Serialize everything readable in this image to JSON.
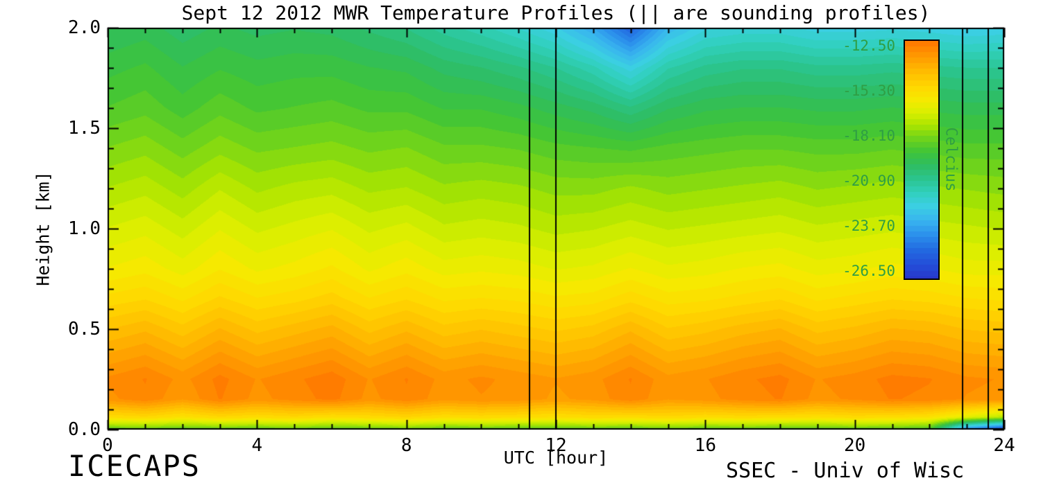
{
  "page": {
    "footer_left": "ICECAPS",
    "footer_right": "SSEC - Univ of Wisc"
  },
  "chart_data": {
    "type": "heatmap",
    "title": "Sept 12 2012 MWR Temperature Profiles (|| are sounding profiles)",
    "xlabel": "UTC [hour]",
    "ylabel": "Height [km]",
    "xlim": [
      0,
      24
    ],
    "ylim": [
      0,
      2.0
    ],
    "xticks": [
      0,
      4,
      8,
      12,
      16,
      20,
      24
    ],
    "xtick_labels": [
      "0",
      "4",
      "8",
      "12",
      "16",
      "20",
      "24"
    ],
    "x_minor_step": 1,
    "yticks": [
      0.0,
      0.5,
      1.0,
      1.5,
      2.0
    ],
    "ytick_labels": [
      "0.0",
      "0.5",
      "1.0",
      "1.5",
      "2.0"
    ],
    "y_minor_step": 0.1,
    "grid": false,
    "sounding_lines_utc": [
      11.3,
      12.0,
      22.9,
      23.6
    ],
    "colorbar": {
      "label": "Celcius",
      "tick_values": [
        -12.5,
        -15.3,
        -18.1,
        -20.9,
        -23.7,
        -26.5
      ],
      "tick_labels": [
        "-12.50",
        "-15.30",
        "-18.10",
        "-20.90",
        "-23.70",
        "-26.50"
      ],
      "top_value": -12.1,
      "bottom_value": -26.9
    },
    "band_step": 0.35,
    "colormap_stops": [
      [
        -27.2,
        "#2a2fc4"
      ],
      [
        -26.3,
        "#2447d6"
      ],
      [
        -25.2,
        "#2268e0"
      ],
      [
        -24.2,
        "#2b90ec"
      ],
      [
        -23.3,
        "#38b4ef"
      ],
      [
        -22.4,
        "#3bcfe2"
      ],
      [
        -21.6,
        "#31d0bd"
      ],
      [
        -20.7,
        "#2bc48e"
      ],
      [
        -19.8,
        "#2fbd5f"
      ],
      [
        -19.0,
        "#3fc437"
      ],
      [
        -18.2,
        "#6ed31c"
      ],
      [
        -17.4,
        "#a8e400"
      ],
      [
        -16.6,
        "#d8ef00"
      ],
      [
        -15.8,
        "#f5ea00"
      ],
      [
        -15.0,
        "#ffd900"
      ],
      [
        -14.0,
        "#ffbb00"
      ],
      [
        -13.0,
        "#ff9800"
      ],
      [
        -12.0,
        "#ff7300"
      ]
    ],
    "x": [
      0,
      1,
      2,
      3,
      4,
      5,
      6,
      7,
      8,
      9,
      10,
      11,
      12,
      13,
      14,
      15,
      16,
      17,
      18,
      19,
      20,
      21,
      22,
      23,
      24
    ],
    "heights": [
      0.0,
      0.06,
      0.15,
      0.25,
      0.35,
      0.5,
      0.65,
      0.8,
      1.0,
      1.2,
      1.4,
      1.6,
      1.8,
      2.0
    ],
    "values": [
      [
        -18.5,
        -18.3,
        -18.6,
        -18.4,
        -18.5,
        -18.3,
        -18.6,
        -18.4,
        -18.2,
        -18.5,
        -18.4,
        -18.5,
        -18.6,
        -18.4,
        -18.5,
        -18.3,
        -18.5,
        -18.4,
        -18.5,
        -18.6,
        -18.4,
        -18.5,
        -18.8,
        -24.5,
        -26.5
      ],
      [
        -15.2,
        -15.0,
        -15.4,
        -15.0,
        -15.2,
        -15.0,
        -15.3,
        -15.1,
        -14.9,
        -15.2,
        -15.1,
        -15.2,
        -15.3,
        -15.1,
        -15.2,
        -15.0,
        -15.2,
        -15.1,
        -15.2,
        -15.3,
        -15.1,
        -15.2,
        -15.4,
        -16.3,
        -17.2
      ],
      [
        -12.9,
        -12.5,
        -13.1,
        -12.4,
        -12.9,
        -12.6,
        -12.3,
        -12.9,
        -12.5,
        -13.0,
        -12.8,
        -12.9,
        -13.2,
        -13.0,
        -12.5,
        -13.1,
        -12.9,
        -12.6,
        -12.4,
        -12.9,
        -12.7,
        -12.4,
        -12.5,
        -12.8,
        -12.9
      ],
      [
        -12.7,
        -12.4,
        -12.9,
        -12.3,
        -12.8,
        -12.5,
        -12.2,
        -12.8,
        -12.4,
        -12.9,
        -12.7,
        -12.9,
        -13.1,
        -12.9,
        -12.4,
        -13.0,
        -12.8,
        -12.5,
        -12.3,
        -12.8,
        -12.6,
        -12.3,
        -12.4,
        -12.7,
        -12.8
      ],
      [
        -13.3,
        -13.0,
        -13.5,
        -12.9,
        -13.4,
        -13.1,
        -12.8,
        -13.4,
        -13.0,
        -13.5,
        -13.3,
        -13.5,
        -13.7,
        -13.5,
        -13.0,
        -13.6,
        -13.4,
        -13.1,
        -12.9,
        -13.4,
        -13.2,
        -12.9,
        -13.0,
        -13.3,
        -13.4
      ],
      [
        -14.2,
        -13.9,
        -14.4,
        -13.8,
        -14.3,
        -14.0,
        -13.7,
        -14.3,
        -13.9,
        -14.4,
        -14.2,
        -14.4,
        -14.6,
        -14.4,
        -13.9,
        -14.5,
        -14.3,
        -14.0,
        -13.8,
        -14.3,
        -14.1,
        -13.8,
        -13.9,
        -14.2,
        -14.3
      ],
      [
        -15.1,
        -14.9,
        -15.3,
        -14.8,
        -15.2,
        -15.0,
        -14.7,
        -15.2,
        -14.9,
        -15.3,
        -15.2,
        -15.3,
        -15.5,
        -15.4,
        -15.0,
        -15.4,
        -15.3,
        -15.1,
        -14.9,
        -15.3,
        -15.1,
        -14.9,
        -15.0,
        -15.2,
        -15.3
      ],
      [
        -15.9,
        -15.7,
        -16.1,
        -15.6,
        -16.0,
        -15.8,
        -15.5,
        -16.0,
        -15.7,
        -16.1,
        -16.0,
        -16.1,
        -16.3,
        -16.2,
        -15.9,
        -16.2,
        -16.1,
        -15.9,
        -15.8,
        -16.1,
        -16.0,
        -15.8,
        -15.9,
        -16.1,
        -16.1
      ],
      [
        -16.6,
        -16.4,
        -16.8,
        -16.3,
        -16.7,
        -16.5,
        -16.3,
        -16.7,
        -16.5,
        -16.9,
        -16.8,
        -16.9,
        -17.1,
        -17.0,
        -16.8,
        -17.0,
        -16.9,
        -16.8,
        -16.7,
        -16.9,
        -16.8,
        -16.7,
        -16.8,
        -16.9,
        -17.0
      ],
      [
        -17.3,
        -17.1,
        -17.5,
        -17.0,
        -17.4,
        -17.2,
        -17.1,
        -17.4,
        -17.3,
        -17.6,
        -17.5,
        -17.6,
        -17.8,
        -17.8,
        -17.6,
        -17.8,
        -17.7,
        -17.6,
        -17.5,
        -17.7,
        -17.6,
        -17.5,
        -17.6,
        -17.7,
        -17.8
      ],
      [
        -18.0,
        -17.8,
        -18.2,
        -17.8,
        -18.1,
        -18.0,
        -17.9,
        -18.1,
        -18.0,
        -18.3,
        -18.3,
        -18.4,
        -18.6,
        -18.7,
        -18.8,
        -18.6,
        -18.5,
        -18.4,
        -18.4,
        -18.5,
        -18.5,
        -18.4,
        -18.5,
        -18.6,
        -18.6
      ],
      [
        -18.7,
        -18.5,
        -18.9,
        -18.5,
        -18.8,
        -18.7,
        -18.6,
        -18.8,
        -18.8,
        -19.1,
        -19.1,
        -19.3,
        -19.6,
        -19.9,
        -20.4,
        -19.8,
        -19.5,
        -19.4,
        -19.4,
        -19.5,
        -19.5,
        -19.4,
        -19.5,
        -19.6,
        -19.6
      ],
      [
        -19.2,
        -19.0,
        -19.4,
        -19.1,
        -19.3,
        -19.2,
        -19.2,
        -19.4,
        -19.5,
        -19.9,
        -20.1,
        -20.4,
        -20.8,
        -21.4,
        -22.4,
        -21.2,
        -20.7,
        -20.5,
        -20.5,
        -20.7,
        -20.7,
        -20.6,
        -20.7,
        -20.8,
        -20.8
      ],
      [
        -19.8,
        -19.6,
        -20.0,
        -19.7,
        -19.9,
        -19.8,
        -19.9,
        -20.2,
        -20.5,
        -21.0,
        -21.4,
        -21.9,
        -22.5,
        -23.6,
        -25.4,
        -23.2,
        -22.3,
        -22.1,
        -22.1,
        -22.4,
        -22.4,
        -22.3,
        -22.4,
        -22.6,
        -22.5
      ]
    ]
  }
}
